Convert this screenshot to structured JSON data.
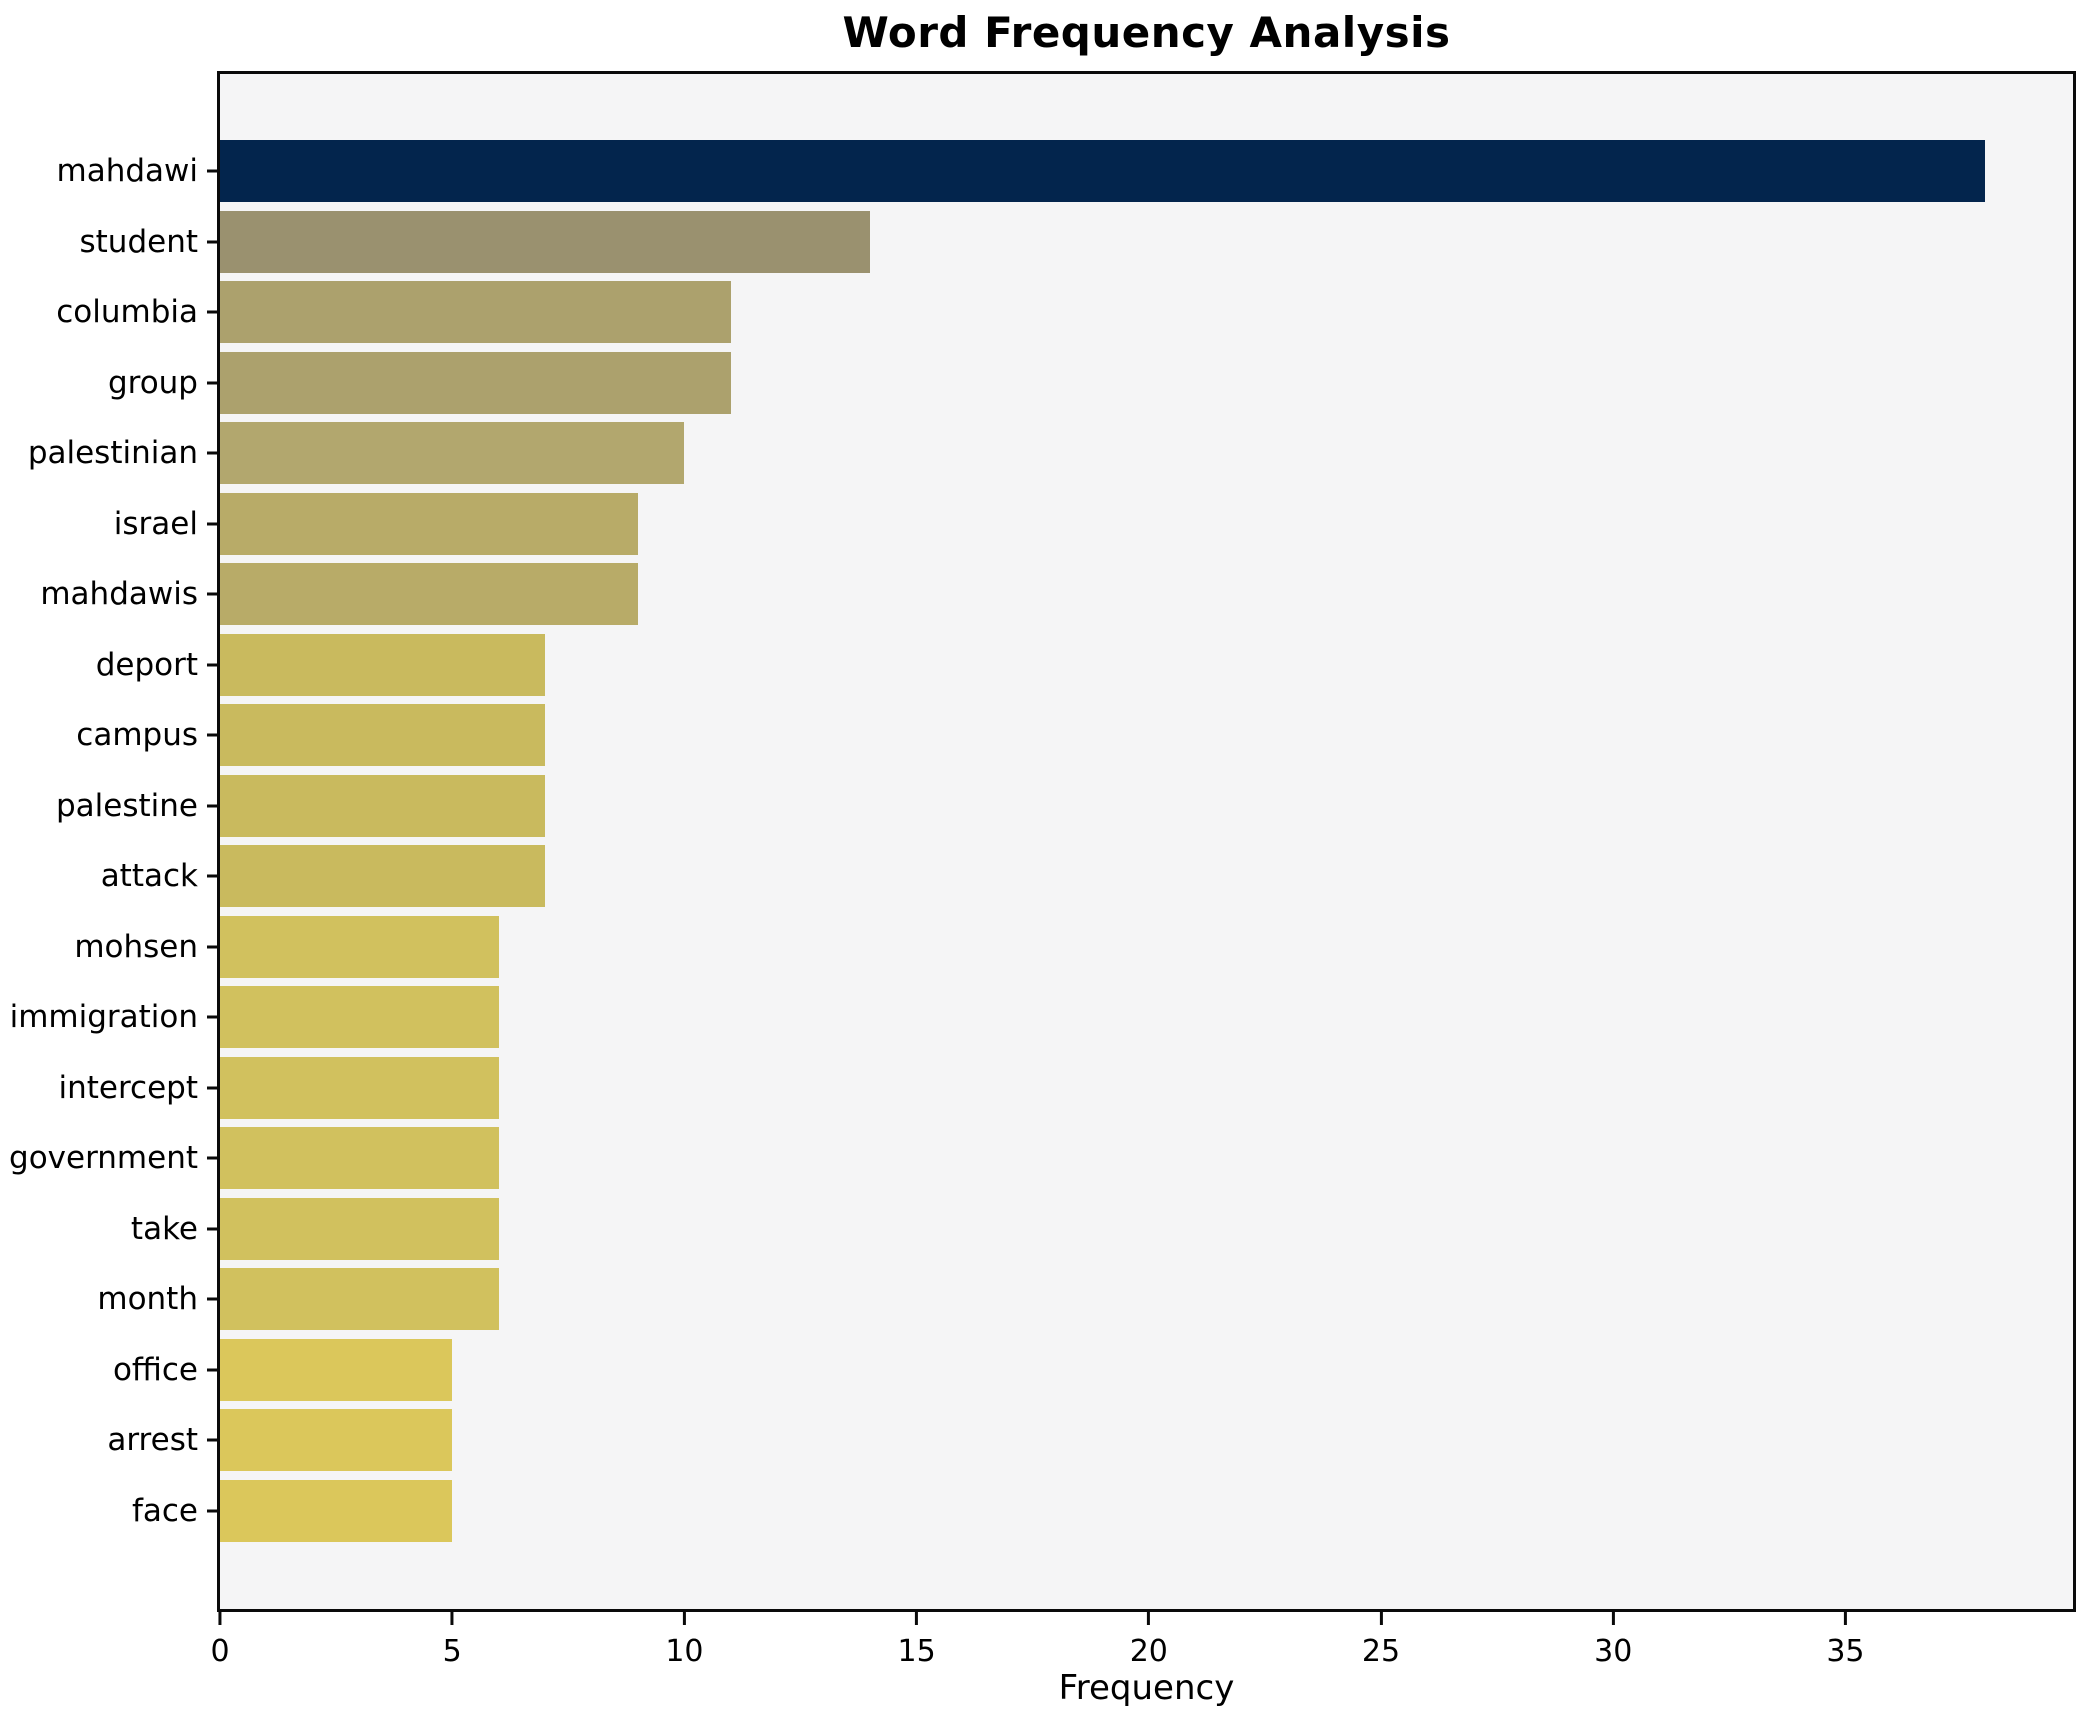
{
  "title": "Word Frequency Analysis",
  "xlabel": "Frequency",
  "chart_data": {
    "type": "bar",
    "orientation": "horizontal",
    "title": "Word Frequency Analysis",
    "xlabel": "Frequency",
    "ylabel": "",
    "categories": [
      "mahdawi",
      "student",
      "columbia",
      "group",
      "palestinian",
      "israel",
      "mahdawis",
      "deport",
      "campus",
      "palestine",
      "attack",
      "mohsen",
      "immigration",
      "intercept",
      "government",
      "take",
      "month",
      "office",
      "arrest",
      "face"
    ],
    "values": [
      38,
      14,
      11,
      11,
      10,
      9,
      9,
      7,
      7,
      7,
      7,
      6,
      6,
      6,
      6,
      6,
      6,
      5,
      5,
      5
    ],
    "bar_colors": [
      "#03254d",
      "#9a916f",
      "#aca16d",
      "#aca16d",
      "#b2a76e",
      "#b8ab68",
      "#b8ab68",
      "#c9ba5e",
      "#c9ba5e",
      "#c9ba5e",
      "#c9ba5e",
      "#d1c15e",
      "#d1c15e",
      "#d1c15e",
      "#d1c15e",
      "#d1c15e",
      "#d1c15e",
      "#dbc75b",
      "#dbc75b",
      "#dbc75b"
    ],
    "xticks": [
      0,
      5,
      10,
      15,
      20,
      25,
      30,
      35
    ],
    "xlim": [
      0,
      39.9
    ],
    "grid": false,
    "legend": null,
    "bar_height_ratio": 0.88,
    "plot_bg": "#f5f5f6",
    "fig_bg": "#ffffff",
    "spine_color": "#0a0a0a",
    "text_color": "#000000"
  }
}
